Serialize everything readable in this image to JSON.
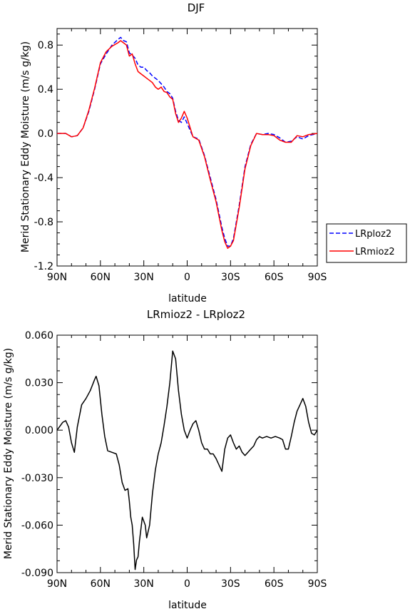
{
  "chart_data": [
    {
      "type": "line",
      "title": "DJF",
      "xlabel": "latitude",
      "ylabel": "Merid Stationary Eddy Moisture (m/s g/kg)",
      "xlim": [
        90,
        -90
      ],
      "ylim": [
        -1.2,
        0.95
      ],
      "xticks": [
        90,
        60,
        30,
        0,
        -30,
        -60,
        -90
      ],
      "xtick_labels": [
        "90N",
        "60N",
        "30N",
        "0",
        "30S",
        "60S",
        "90S"
      ],
      "yticks": [
        0.8,
        0.4,
        0.0,
        -0.4,
        -0.8,
        -1.2
      ],
      "ytick_labels": [
        "0.8",
        "0.4",
        "0.0",
        "-0.4",
        "-0.8",
        "-1.2"
      ],
      "legend_position": "outside-right",
      "x": [
        90,
        84,
        80,
        76,
        72,
        68,
        64,
        60,
        56,
        52,
        48,
        46,
        44,
        42,
        40,
        38,
        36,
        34,
        32,
        30,
        28,
        26,
        24,
        22,
        20,
        18,
        16,
        14,
        12,
        10,
        8,
        6,
        4,
        2,
        0,
        -4,
        -8,
        -12,
        -16,
        -20,
        -24,
        -26,
        -28,
        -30,
        -32,
        -36,
        -40,
        -44,
        -48,
        -52,
        -56,
        -60,
        -64,
        -68,
        -72,
        -76,
        -80,
        -84,
        -90
      ],
      "series": [
        {
          "name": "LRploz2",
          "color": "#0000ff",
          "dash": "dashed",
          "values": [
            0.0,
            0.0,
            -0.03,
            -0.02,
            0.05,
            0.2,
            0.4,
            0.63,
            0.72,
            0.8,
            0.85,
            0.87,
            0.84,
            0.83,
            0.73,
            0.71,
            0.68,
            0.62,
            0.6,
            0.6,
            0.57,
            0.55,
            0.52,
            0.5,
            0.48,
            0.45,
            0.42,
            0.38,
            0.36,
            0.32,
            0.2,
            0.12,
            0.1,
            0.15,
            0.09,
            -0.03,
            -0.05,
            -0.2,
            -0.4,
            -0.6,
            -0.85,
            -0.95,
            -1.02,
            -1.02,
            -0.95,
            -0.65,
            -0.3,
            -0.1,
            0.0,
            -0.01,
            0.0,
            -0.01,
            -0.04,
            -0.08,
            -0.07,
            -0.03,
            -0.05,
            -0.02,
            0.0
          ]
        },
        {
          "name": "LRmioz2",
          "color": "#ff0000",
          "dash": "solid",
          "values": [
            0.0,
            0.0,
            -0.03,
            -0.02,
            0.05,
            0.21,
            0.41,
            0.64,
            0.74,
            0.79,
            0.82,
            0.84,
            0.82,
            0.8,
            0.7,
            0.72,
            0.63,
            0.56,
            0.54,
            0.52,
            0.5,
            0.48,
            0.46,
            0.42,
            0.4,
            0.42,
            0.38,
            0.37,
            0.33,
            0.31,
            0.18,
            0.1,
            0.14,
            0.2,
            0.14,
            -0.03,
            -0.06,
            -0.21,
            -0.42,
            -0.62,
            -0.88,
            -0.98,
            -1.04,
            -1.02,
            -0.97,
            -0.67,
            -0.32,
            -0.11,
            0.0,
            -0.01,
            -0.01,
            -0.02,
            -0.06,
            -0.08,
            -0.08,
            -0.02,
            -0.03,
            -0.01,
            0.0
          ]
        }
      ]
    },
    {
      "type": "line",
      "title": "LRmioz2 - LRploz2",
      "xlabel": "latitude",
      "ylabel": "Merid Stationary Eddy Moisture (m/s g/kg)",
      "xlim": [
        90,
        -90
      ],
      "ylim": [
        -0.09,
        0.06
      ],
      "xticks": [
        90,
        60,
        30,
        0,
        -30,
        -60,
        -90
      ],
      "xtick_labels": [
        "90N",
        "60N",
        "30N",
        "0",
        "30S",
        "60S",
        "90S"
      ],
      "yticks": [
        0.06,
        0.03,
        0.0,
        -0.03,
        -0.06,
        -0.09
      ],
      "ytick_labels": [
        "0.060",
        "0.030",
        "0.000",
        "-0.030",
        "-0.060",
        "-0.090"
      ],
      "x": [
        90,
        86,
        84,
        82,
        80,
        78,
        76,
        73,
        70,
        67,
        64,
        63,
        61,
        59,
        57,
        55,
        52,
        49,
        47,
        45,
        43,
        41,
        40,
        39,
        38,
        37,
        36,
        35,
        34,
        33,
        31,
        29,
        28,
        26,
        24,
        22,
        20,
        18,
        16,
        14,
        12,
        10,
        8,
        6,
        4,
        2,
        0,
        -2,
        -4,
        -6,
        -8,
        -10,
        -12,
        -14,
        -16,
        -18,
        -20,
        -22,
        -24,
        -26,
        -28,
        -30,
        -32,
        -34,
        -36,
        -38,
        -40,
        -42,
        -44,
        -46,
        -48,
        -50,
        -52,
        -55,
        -58,
        -61,
        -64,
        -66,
        -68,
        -70,
        -72,
        -74,
        -76,
        -78,
        -80,
        -82,
        -84,
        -86,
        -88,
        -90
      ],
      "series": [
        {
          "name": "",
          "color": "#000000",
          "dash": "solid",
          "values": [
            0.0,
            0.005,
            0.006,
            0.002,
            -0.008,
            -0.014,
            0.002,
            0.016,
            0.02,
            0.025,
            0.032,
            0.034,
            0.028,
            0.01,
            -0.004,
            -0.013,
            -0.014,
            -0.015,
            -0.022,
            -0.033,
            -0.038,
            -0.037,
            -0.045,
            -0.055,
            -0.06,
            -0.072,
            -0.088,
            -0.082,
            -0.08,
            -0.07,
            -0.055,
            -0.06,
            -0.068,
            -0.06,
            -0.04,
            -0.025,
            -0.015,
            -0.008,
            0.003,
            0.015,
            0.03,
            0.05,
            0.045,
            0.025,
            0.01,
            0.0,
            -0.005,
            0.0,
            0.004,
            0.006,
            0.0,
            -0.008,
            -0.012,
            -0.012,
            -0.015,
            -0.015,
            -0.018,
            -0.022,
            -0.026,
            -0.012,
            -0.005,
            -0.003,
            -0.008,
            -0.012,
            -0.01,
            -0.014,
            -0.016,
            -0.014,
            -0.012,
            -0.01,
            -0.006,
            -0.004,
            -0.005,
            -0.004,
            -0.005,
            -0.004,
            -0.005,
            -0.006,
            -0.012,
            -0.012,
            -0.004,
            0.005,
            0.012,
            0.016,
            0.02,
            0.015,
            0.005,
            -0.002,
            -0.003,
            0.0
          ]
        }
      ]
    }
  ]
}
